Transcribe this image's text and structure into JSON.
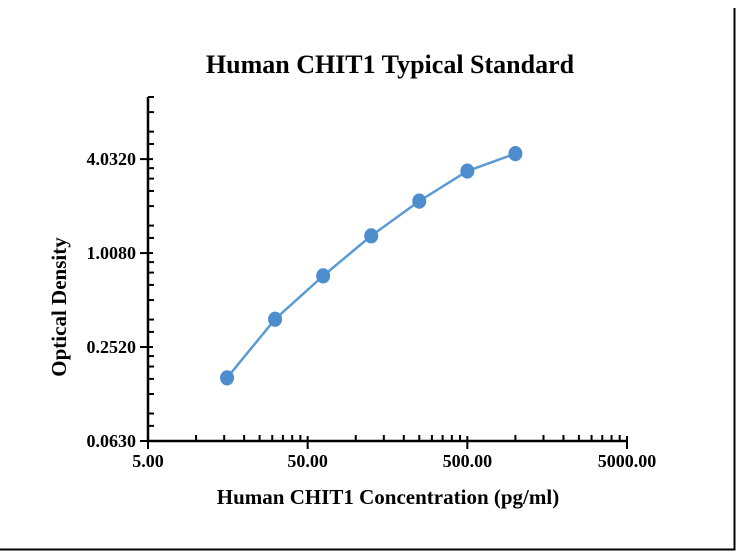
{
  "page": {
    "background_color": "#ffffff",
    "frame_border_color": "#000000"
  },
  "chart_data": {
    "type": "line",
    "title": "Human CHIT1 Typical Standard",
    "xlabel": "Human CHIT1 Concentration (pg/ml)",
    "ylabel": "Optical Density",
    "x_scale": "log",
    "y_scale": "log",
    "x_range": [
      5,
      5000
    ],
    "y_range": [
      0.063,
      10.08
    ],
    "grid": false,
    "legend": "none",
    "x_ticks": [
      {
        "value": 5,
        "label": "5.00"
      },
      {
        "value": 50,
        "label": "50.00"
      },
      {
        "value": 500,
        "label": "500.00"
      },
      {
        "value": 5000,
        "label": "5000.00"
      }
    ],
    "y_ticks": [
      {
        "value": 0.063,
        "label": "0.0630"
      },
      {
        "value": 0.252,
        "label": "0.2520"
      },
      {
        "value": 1.008,
        "label": "1.0080"
      },
      {
        "value": 4.032,
        "label": "4.0320"
      }
    ],
    "x_minor_tick_multiples": [
      2,
      3,
      4,
      5,
      6,
      7,
      8,
      9
    ],
    "y_minor_tick_multiples": [
      1.25,
      1.5,
      2,
      2.5,
      3,
      3.5
    ],
    "axis_color": "#000000",
    "series": [
      {
        "name": "Typical Standard",
        "line_color": "#5B9BD5",
        "marker_color": "#4D8DCE",
        "x": [
          15.63,
          31.25,
          62.5,
          125,
          250,
          500,
          1000
        ],
        "y": [
          0.16,
          0.38,
          0.72,
          1.3,
          2.17,
          3.38,
          4.37
        ]
      }
    ]
  }
}
